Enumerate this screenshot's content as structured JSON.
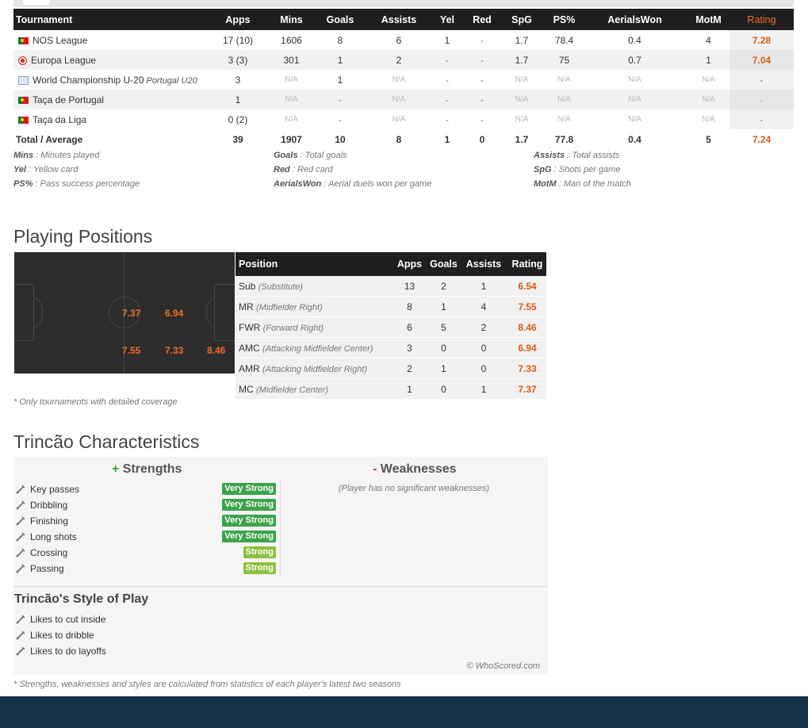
{
  "tournaments": {
    "headers": [
      "Tournament",
      "Apps",
      "Mins",
      "Goals",
      "Assists",
      "Yel",
      "Red",
      "SpG",
      "PS%",
      "AerialsWon",
      "MotM",
      "Rating"
    ],
    "rows": [
      {
        "name": "NOS League",
        "note": "",
        "flag": "portugal-flag",
        "apps": "17 (10)",
        "mins": "1606",
        "goals": "8",
        "assists": "6",
        "yel": "1",
        "red": "-",
        "spg": "1.7",
        "ps": "78.4",
        "aerials": "0.4",
        "motm": "4",
        "rating": "7.28"
      },
      {
        "name": "Europa League",
        "note": "",
        "flag": "europa-league-icon",
        "apps": "3 (3)",
        "mins": "301",
        "goals": "1",
        "assists": "2",
        "yel": "-",
        "red": "-",
        "spg": "1.7",
        "ps": "75",
        "aerials": "0.7",
        "motm": "1",
        "rating": "7.04"
      },
      {
        "name": "World Championship U-20",
        "note": "Portugal U20",
        "flag": "fifa-icon",
        "apps": "3",
        "mins": "N/A",
        "goals": "1",
        "assists": "N/A",
        "yel": "-",
        "red": "-",
        "spg": "N/A",
        "ps": "N/A",
        "aerials": "N/A",
        "motm": "N/A",
        "rating": "-"
      },
      {
        "name": "Taça de Portugal",
        "note": "",
        "flag": "portugal-flag",
        "apps": "1",
        "mins": "N/A",
        "goals": "-",
        "assists": "N/A",
        "yel": "-",
        "red": "-",
        "spg": "N/A",
        "ps": "N/A",
        "aerials": "N/A",
        "motm": "N/A",
        "rating": "-"
      },
      {
        "name": "Taça da Liga",
        "note": "",
        "flag": "portugal-flag",
        "apps": "0 (2)",
        "mins": "N/A",
        "goals": "-",
        "assists": "N/A",
        "yel": "-",
        "red": "-",
        "spg": "N/A",
        "ps": "N/A",
        "aerials": "N/A",
        "motm": "N/A",
        "rating": "-"
      }
    ],
    "total": {
      "label": "Total / Average",
      "apps": "39",
      "mins": "1907",
      "goals": "10",
      "assists": "8",
      "yel": "1",
      "red": "0",
      "spg": "1.7",
      "ps": "77.8",
      "aerials": "0.4",
      "motm": "5",
      "rating": "7.24"
    }
  },
  "legend": [
    {
      "abbr": "Mins",
      "desc": " : Minutes played"
    },
    {
      "abbr": "Yel",
      "desc": " : Yellow card"
    },
    {
      "abbr": "PS%",
      "desc": " : Pass success percentage"
    },
    {
      "abbr": "Goals",
      "desc": " : Total goals"
    },
    {
      "abbr": "Red",
      "desc": " : Red card"
    },
    {
      "abbr": "AerialsWon",
      "desc": " : Aerial duels won per game"
    },
    {
      "abbr": "Assists",
      "desc": " : Total assists"
    },
    {
      "abbr": "SpG",
      "desc": " : Shots per game"
    },
    {
      "abbr": "MotM",
      "desc": " : Man of the match"
    }
  ],
  "positions": {
    "title": "Playing Positions",
    "pitch_ratings": [
      "7.37",
      "6.94",
      "7.55",
      "7.33",
      "8.46"
    ],
    "headers": [
      "Position",
      "Apps",
      "Goals",
      "Assists",
      "Rating"
    ],
    "rows": [
      {
        "pos": "Sub",
        "desc": "(Substitute)",
        "apps": "13",
        "goals": "2",
        "assists": "1",
        "rating": "6.54"
      },
      {
        "pos": "MR",
        "desc": "(Midfielder Right)",
        "apps": "8",
        "goals": "1",
        "assists": "4",
        "rating": "7.55"
      },
      {
        "pos": "FWR",
        "desc": "(Forward Right)",
        "apps": "6",
        "goals": "5",
        "assists": "2",
        "rating": "8.46"
      },
      {
        "pos": "AMC",
        "desc": "(Attacking Midfielder Center)",
        "apps": "3",
        "goals": "0",
        "assists": "0",
        "rating": "6.94"
      },
      {
        "pos": "AMR",
        "desc": "(Attacking Midfielder Right)",
        "apps": "2",
        "goals": "1",
        "assists": "0",
        "rating": "7.33"
      },
      {
        "pos": "MC",
        "desc": "(Midfielder Center)",
        "apps": "1",
        "goals": "0",
        "assists": "1",
        "rating": "7.37"
      }
    ],
    "note": "* Only tournaments with detailed coverage"
  },
  "characteristics": {
    "title": "Trincão Characteristics",
    "strengths_sign": "+",
    "strengths_title": "Strengths",
    "weaknesses_sign": "-",
    "weaknesses_title": "Weaknesses",
    "strengths": [
      {
        "label": "Key passes",
        "level": "Very Strong"
      },
      {
        "label": "Dribbling",
        "level": "Very Strong"
      },
      {
        "label": "Finishing",
        "level": "Very Strong"
      },
      {
        "label": "Long shots",
        "level": "Very Strong"
      },
      {
        "label": "Crossing",
        "level": "Strong"
      },
      {
        "label": "Passing",
        "level": "Strong"
      }
    ],
    "no_weaknesses": "(Player has no significant weaknesses)",
    "style_title": "Trincão's Style of Play",
    "styles": [
      "Likes to cut inside",
      "Likes to dribble",
      "Likes to do layoffs"
    ],
    "copyright": "© WhoScored.com",
    "note": "* Strengths, weaknesses and styles are calculated from statistics of each player's latest two seasons"
  },
  "colors": {
    "rating": "#e05a12",
    "header_bg": "#1f1f1f",
    "very_strong": "#3ca34a",
    "strong": "#8dc13f",
    "footer": "#17334a"
  }
}
